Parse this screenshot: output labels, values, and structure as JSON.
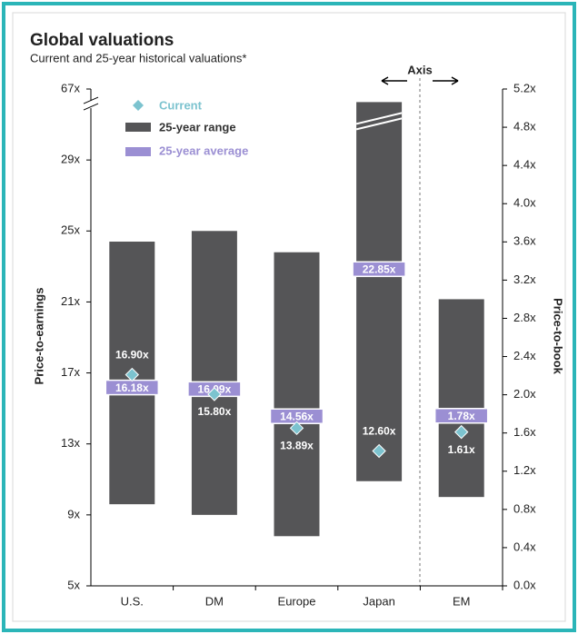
{
  "chart_data": {
    "type": "range-bar",
    "title": "Global valuations",
    "subtitle": "Current and 25-year historical valuations*",
    "y_label": "Price-to-earnings",
    "y2_label": "Price-to-book",
    "annotation": "Axis",
    "categories": [
      "U.S.",
      "DM",
      "Europe",
      "Japan",
      "EM"
    ],
    "category_axis": [
      "y",
      "y",
      "y",
      "y",
      "y2"
    ],
    "series": [
      {
        "name": "25-year range",
        "color": "#555557",
        "values": [
          9.6,
          9.0,
          7.8,
          10.9,
          0.93
        ]
      },
      {
        "name": null,
        "color": "#555557",
        "values": [
          24.4,
          25.0,
          23.8,
          60,
          3.0
        ]
      },
      {
        "name": "25-year average",
        "color": "#9b8fd3",
        "values": [
          16.18,
          16.09,
          14.56,
          22.85,
          1.78
        ],
        "value_labels": [
          "16.18x",
          "16.09x",
          "14.56x",
          "22.85x",
          "1.78x"
        ]
      },
      {
        "name": "Current",
        "color": "#7cc3cf",
        "values": [
          16.9,
          15.8,
          13.89,
          12.6,
          1.61
        ],
        "value_labels": [
          "16.90x",
          "15.80x",
          "13.89x",
          "12.60x",
          "1.61x"
        ]
      }
    ],
    "ylim": [
      5,
      67
    ],
    "yticks": [
      {
        "value": 5,
        "label": "5x"
      },
      {
        "value": 9,
        "label": "9x"
      },
      {
        "value": 13,
        "label": "13x"
      },
      {
        "value": 17,
        "label": "17x"
      },
      {
        "value": 21,
        "label": "21x"
      },
      {
        "value": 25,
        "label": "25x"
      },
      {
        "value": 29,
        "label": "29x"
      },
      {
        "value": 67,
        "label": "67x"
      }
    ],
    "axis_break": true,
    "y2lim": [
      0,
      5.2
    ],
    "y2ticks": [
      {
        "value": 0,
        "label": "0.0x"
      },
      {
        "value": 0.4,
        "label": "0.4x"
      },
      {
        "value": 0.8,
        "label": "0.8x"
      },
      {
        "value": 1.2,
        "label": "1.2x"
      },
      {
        "value": 1.6,
        "label": "1.6x"
      },
      {
        "value": 2.0,
        "label": "2.0x"
      },
      {
        "value": 2.4,
        "label": "2.4x"
      },
      {
        "value": 2.8,
        "label": "2.8x"
      },
      {
        "value": 3.2,
        "label": "3.2x"
      },
      {
        "value": 3.6,
        "label": "3.6x"
      },
      {
        "value": 4.0,
        "label": "4.0x"
      },
      {
        "value": 4.4,
        "label": "4.4x"
      },
      {
        "value": 4.8,
        "label": "4.8x"
      },
      {
        "value": 5.2,
        "label": "5.2x"
      }
    ]
  }
}
